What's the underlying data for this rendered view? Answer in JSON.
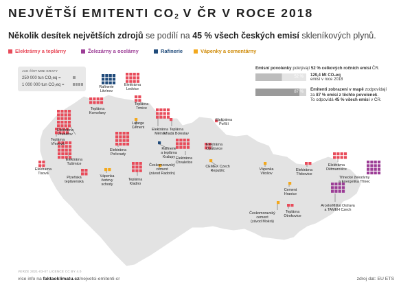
{
  "title": {
    "main": "NEJVĚTŠÍ EMITENTI CO",
    "sub": "2",
    "rest": " V ČR V ROCE 2018"
  },
  "subtitle": {
    "part1": "Několik desítek největších zdrojů",
    "part2": " se podílí na ",
    "part3": "45 % všech českých emisí",
    "part4": " skleníkových plynů."
  },
  "legend": [
    {
      "label": "Elektrárny a teplárny",
      "color": "#e84b5a"
    },
    {
      "label": "Železárny a ocelárny",
      "color": "#9c3d96"
    },
    {
      "label": "Rafinerie",
      "color": "#1f4a7a"
    },
    {
      "label": "Vápenky a cementárny",
      "color": "#f3a81d"
    }
  ],
  "howto": {
    "heading": "JAK ČÍST MINI GRAFY",
    "row1": "250 000 tun CO₂eq =",
    "row2": "1 000 000 tun CO₂eq ="
  },
  "info": {
    "line1": {
      "a": "Emisní povolenky",
      "b": " pokrývají ",
      "c": "52 % celkových ročních emisí",
      "d": " ČR."
    },
    "bar1_label": "52 %",
    "bar1_value": 52,
    "total_a": "129,4 Mt CO₂eq",
    "total_b": "emisí v roce 2018",
    "bar2_label": "87 %",
    "bar2_value": 87,
    "line2a": {
      "a": "Emitenti zobrazení v mapě",
      "b": " zodpovídají"
    },
    "line2b": {
      "a": "za ",
      "b": "87 % emisí z těchto povolenek",
      "c": "."
    },
    "line2c": {
      "a": "To odpovídá ",
      "b": "45 % všech emisí",
      "c": " v ČR."
    }
  },
  "emitters": [
    {
      "name": "Rafinerie Litvínov",
      "lines": [
        "Rafinerie",
        "Litvínov"
      ],
      "type": "refinery",
      "cells": 12
    },
    {
      "name": "Elektrárna Ledvice",
      "lines": [
        "Elektrárna",
        "Ledvice"
      ],
      "type": "power",
      "cells": 12
    },
    {
      "name": "Teplárna Komořany",
      "lines": [
        "Teplárna",
        "Komořany"
      ],
      "type": "power",
      "cells": 8
    },
    {
      "name": "Teplárna Trmice",
      "lines": [
        "Teplárna",
        "Trmice"
      ],
      "type": "power",
      "cells": 4
    },
    {
      "name": "Elektrárna Prunéřov",
      "lines": [
        "Elektrárna",
        "Prunéřov"
      ],
      "type": "power",
      "cells": 20
    },
    {
      "name": "Lafarge Cement",
      "lines": [
        "Lafarge",
        "Cement"
      ],
      "type": "cement",
      "cells": 1
    },
    {
      "name": "Elektrárna Mělník",
      "lines": [
        "Elektrárna",
        "Mělník"
      ],
      "type": "power",
      "cells": 12
    },
    {
      "name": "Teplárna Mladá Boleslav",
      "lines": [
        "Teplárna",
        "Mladá Boleslav"
      ],
      "type": "power",
      "cells": 1
    },
    {
      "name": "Elektrárna Poříčí",
      "lines": [
        "Elektrárna",
        "Poříčí"
      ],
      "type": "power",
      "cells": 1
    },
    {
      "name": "Teplárna Vřesová",
      "lines": [
        "Teplárna",
        "Vřesová"
      ],
      "type": "power",
      "cells": 8
    },
    {
      "name": "Elektrárna Počerady",
      "lines": [
        "Elektrárna",
        "Počerady"
      ],
      "type": "power",
      "cells": 16
    },
    {
      "name": "Elektrárna Tušimice",
      "lines": [
        "Elektrárna",
        "Tušimice"
      ],
      "type": "power",
      "cells": 20
    },
    {
      "name": "Rafinerie a teplárna Kralupy",
      "lines": [
        "Rafinerie",
        "a teplárna",
        "Kralupy"
      ],
      "type": "refinery",
      "cells": 1
    },
    {
      "name": "Elektrárna Chvaletice",
      "lines": [
        "Elektrárna",
        "Chvaletice"
      ],
      "type": "power",
      "cells": 12
    },
    {
      "name": "Elektrárna Opatovice",
      "lines": [
        "Elektrárna",
        "Opatovice"
      ],
      "type": "power",
      "cells": 4
    },
    {
      "name": "Elektrárna Tisová",
      "lines": [
        "Elektrárna",
        "Tisová"
      ],
      "type": "power",
      "cells": 4
    },
    {
      "name": "Plzeňská teplárenská",
      "lines": [
        "Plzeňská",
        "teplárenská"
      ],
      "type": "power",
      "cells": 4
    },
    {
      "name": "Vápenka čertovy schody",
      "lines": [
        "Vápenka",
        "čertovy",
        "schody"
      ],
      "type": "cement",
      "cells": 2
    },
    {
      "name": "Českomoravský cement (závod Radotín)",
      "lines": [
        "Českomoravský",
        "cement",
        "(závod Radotín)"
      ],
      "type": "cement",
      "cells": 1
    },
    {
      "name": "Teplárna Kladno",
      "lines": [
        "Teplárna",
        "Kladno"
      ],
      "type": "power",
      "cells": 9
    },
    {
      "name": "CEMEX Czech Republic",
      "lines": [
        "CEMEX Czech",
        "Republic"
      ],
      "type": "cement",
      "cells": 1
    },
    {
      "name": "Vápenka Vitošov",
      "lines": [
        "Vápenka",
        "Vitošov"
      ],
      "type": "cement",
      "cells": 1
    },
    {
      "name": "Cement Hranice",
      "lines": [
        "Cement",
        "Hranice"
      ],
      "type": "cement",
      "cells": 1
    },
    {
      "name": "Českomoravský cement (závod Mokrá)",
      "lines": [
        "Českomoravský",
        "cement",
        "(závod Mokrá)"
      ],
      "type": "cement",
      "cells": 1
    },
    {
      "name": "Teplárna Otrokovice",
      "lines": [
        "Teplárna",
        "Otrokovice"
      ],
      "type": "power",
      "cells": 2
    },
    {
      "name": "Elektrárna Třebovice",
      "lines": [
        "Elektrárna",
        "Třebovice"
      ],
      "type": "power",
      "cells": 2
    },
    {
      "name": "Elektrárna Dětmarovice",
      "lines": [
        "Elektrárna",
        "Dětmarovice"
      ],
      "type": "power",
      "cells": 8
    },
    {
      "name": "Třinecké železárny a Energetika Třinec",
      "lines": [
        "Třinecké železárny",
        "a Energetika Třinec"
      ],
      "type": "steel",
      "cells": 16
    },
    {
      "name": "ArcelorMittal Ostrava a TAMEH Czech",
      "lines": [
        "ArcelorMittal Ostrava",
        "a TAMEH Czech"
      ],
      "type": "steel",
      "cells": 12
    }
  ],
  "footer": {
    "small": "VERZE 2021-03-07    LICENCE CC BY 4.0",
    "link_a": "více info na ",
    "link_b": "faktaoklimatu.cz",
    "link_c": "/nejvetsi-emitenti-cr",
    "source": "zdroj dat: EU ETS"
  }
}
